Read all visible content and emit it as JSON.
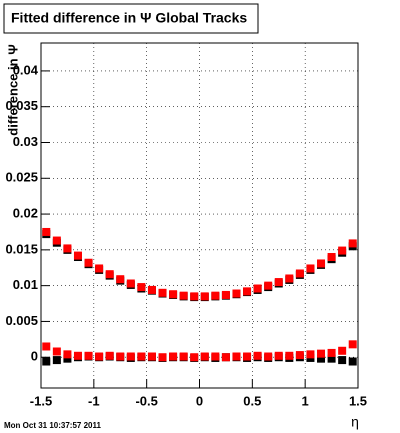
{
  "chart_data": {
    "type": "scatter",
    "title": "Fitted difference in  Ψ  Global Tracks",
    "y_label": "difference in Ψ",
    "x_label": "η",
    "timestamp": "Mon Oct 31 10:37:57 2011",
    "xlim": [
      -1.5,
      1.5
    ],
    "ylim": [
      -0.0043,
      0.0439
    ],
    "xticks": [
      -1.5,
      -1,
      -0.5,
      0,
      0.5,
      1,
      1.5
    ],
    "yticks": [
      0,
      0.005,
      0.01,
      0.015,
      0.02,
      0.025,
      0.03,
      0.035,
      0.04
    ],
    "grid": true,
    "x": [
      -1.45,
      -1.35,
      -1.25,
      -1.15,
      -1.05,
      -0.95,
      -0.85,
      -0.75,
      -0.65,
      -0.55,
      -0.45,
      -0.35,
      -0.25,
      -0.15,
      -0.05,
      0.05,
      0.15,
      0.25,
      0.35,
      0.45,
      0.55,
      0.65,
      0.75,
      0.85,
      0.95,
      1.05,
      1.15,
      1.25,
      1.35,
      1.45
    ],
    "series": [
      {
        "color": "#000000",
        "values": [
          0.0172,
          0.016,
          0.015,
          0.014,
          0.013,
          0.0122,
          0.0114,
          0.0107,
          0.0101,
          0.0096,
          0.0093,
          0.0089,
          0.0087,
          0.0085,
          0.0084,
          0.0084,
          0.0085,
          0.0086,
          0.0088,
          0.0091,
          0.0094,
          0.0098,
          0.0103,
          0.0108,
          0.0115,
          0.0122,
          0.0129,
          0.0137,
          0.0146,
          0.0155
        ]
      },
      {
        "color": "#000000",
        "values": [
          -0.0006,
          -0.0004,
          -0.0002,
          0.0,
          0.0001,
          0.0,
          0.0001,
          0.0,
          -0.0001,
          0.0,
          0.0,
          -0.0001,
          0.0,
          0.0,
          -0.0001,
          0.0,
          -0.0001,
          0.0,
          0.0,
          -0.0001,
          0.0,
          -0.0001,
          0.0,
          -0.0001,
          0.0,
          -0.0001,
          -0.0002,
          -0.0002,
          -0.0004,
          -0.0006
        ]
      },
      {
        "color": "#ff0000",
        "values": [
          0.0175,
          0.0163,
          0.0152,
          0.0142,
          0.0132,
          0.0124,
          0.0116,
          0.0109,
          0.0103,
          0.0098,
          0.0094,
          0.009,
          0.0088,
          0.0086,
          0.0085,
          0.0085,
          0.0086,
          0.0087,
          0.0089,
          0.0092,
          0.0096,
          0.01,
          0.0105,
          0.011,
          0.0117,
          0.0124,
          0.0131,
          0.014,
          0.0149,
          0.0159
        ]
      },
      {
        "color": "#ff0000",
        "values": [
          0.0015,
          0.0008,
          0.0004,
          0.0002,
          0.0002,
          0.0001,
          0.0002,
          0.0001,
          0.0001,
          0.0001,
          0.0001,
          0.0,
          0.0001,
          0.0001,
          0.0,
          0.0001,
          0.0001,
          0.0,
          0.0001,
          0.0001,
          0.0002,
          0.0001,
          0.0002,
          0.0002,
          0.0003,
          0.0004,
          0.0005,
          0.0006,
          0.0009,
          0.0018
        ]
      }
    ]
  }
}
